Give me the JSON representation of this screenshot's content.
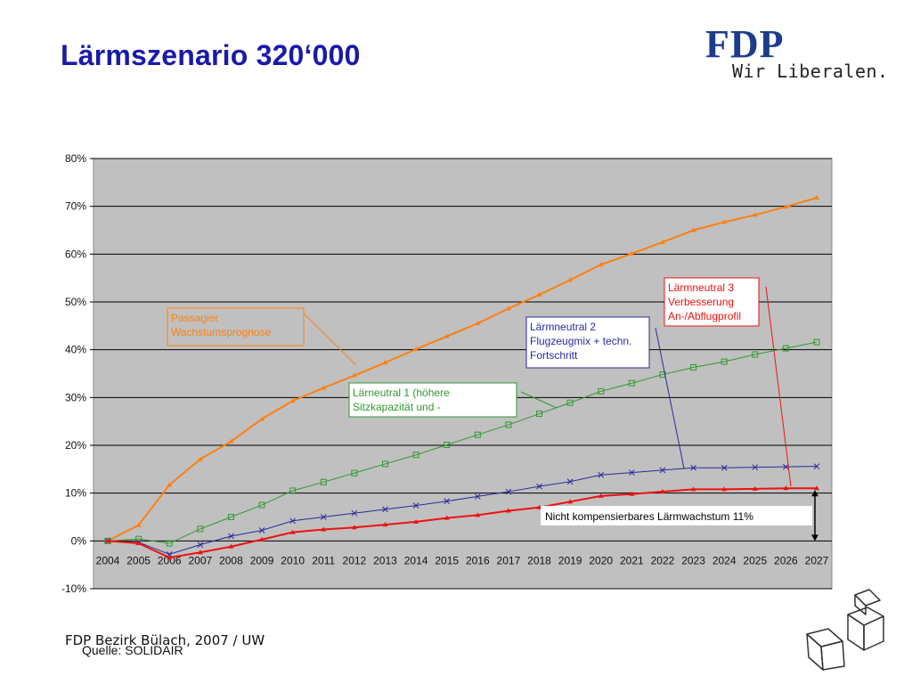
{
  "slide": {
    "title": "Lärmszenario 320‘000",
    "footer_org": "FDP Bezirk Bülach, 2007 / UW",
    "footer_source": "Quelle: SOLIDAIR"
  },
  "logo": {
    "name": "FDP",
    "tagline": "Wir Liberalen."
  },
  "colors": {
    "title": "#1a1aa8",
    "plot_bg": "#c0c0c0",
    "orange": "#ff7f0e",
    "green": "#2e9a2e",
    "blue": "#2a2a9c",
    "red": "#ee1111"
  },
  "chart_data": {
    "type": "line",
    "title": "",
    "xlabel": "",
    "ylabel": "",
    "ylim": [
      -10,
      80
    ],
    "yticks": [
      "80%",
      "70%",
      "60%",
      "50%",
      "40%",
      "30%",
      "20%",
      "10%",
      "0%",
      "-10%"
    ],
    "categories": [
      "2004",
      "2005",
      "2006",
      "2007",
      "2008",
      "2009",
      "2010",
      "2011",
      "2012",
      "2013",
      "2014",
      "2015",
      "2016",
      "2017",
      "2018",
      "2019",
      "2020",
      "2021",
      "2022",
      "2023",
      "2024",
      "2025",
      "2026",
      "2027"
    ],
    "grid": "horizontal",
    "series": [
      {
        "key": "orange",
        "marker": "triangle",
        "values": [
          0,
          3.3,
          11.7,
          17.1,
          20.8,
          25.5,
          29.3,
          32,
          34.6,
          37.3,
          40.1,
          42.8,
          45.5,
          48.6,
          51.5,
          54.6,
          57.8,
          60.1,
          62.5,
          65,
          66.7,
          68.2,
          69.9,
          71.8
        ]
      },
      {
        "key": "green",
        "marker": "square",
        "values": [
          0,
          0.4,
          -0.5,
          2.5,
          5,
          7.5,
          10.5,
          12.3,
          14.2,
          16.1,
          18,
          20.1,
          22.2,
          24.3,
          26.6,
          28.9,
          31.3,
          33,
          34.8,
          36.3,
          37.5,
          39,
          40.3,
          41.6
        ]
      },
      {
        "key": "blue",
        "marker": "x",
        "values": [
          0,
          -0.3,
          -2.8,
          -0.8,
          1,
          2.2,
          4.2,
          5,
          5.8,
          6.6,
          7.4,
          8.3,
          9.3,
          10.3,
          11.4,
          12.4,
          13.8,
          14.3,
          14.8,
          15.3,
          15.3,
          15.4,
          15.5,
          15.6
        ]
      },
      {
        "key": "red",
        "marker": "triangle",
        "values": [
          0,
          -0.5,
          -3.5,
          -2.4,
          -1.2,
          0.3,
          1.8,
          2.4,
          2.8,
          3.4,
          4,
          4.8,
          5.4,
          6.3,
          7,
          8.2,
          9.4,
          9.8,
          10.3,
          10.8,
          10.8,
          10.9,
          11,
          11
        ]
      }
    ],
    "annotations": [
      {
        "key": "orange",
        "lines": [
          "Passagier",
          "Wachstumsprognose"
        ]
      },
      {
        "key": "green",
        "lines": [
          "Lärneutral 1 (höhere",
          "Sitzkapazität und -"
        ]
      },
      {
        "key": "blue",
        "lines": [
          "Lärmneutral 2",
          "Flugzeugmix + techn.",
          "Fortschritt"
        ]
      },
      {
        "key": "red",
        "lines": [
          "Lärmneutral 3",
          "Verbesserung",
          "An-/Abflugprofil"
        ]
      }
    ],
    "bracket_label": "Nicht kompensierbares Lärmwachstum   11%"
  }
}
